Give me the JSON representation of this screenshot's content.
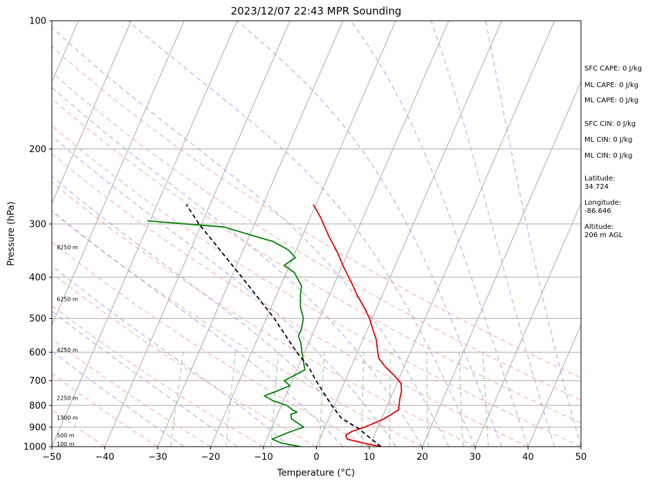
{
  "chart_data": {
    "type": "line",
    "subtype": "skew-t log-p sounding",
    "title": "2023/12/07 22:43 MPR Sounding",
    "xlabel": "Temperature (°C)",
    "ylabel": "Pressure (hPa)",
    "xlim": [
      -50,
      50
    ],
    "ylim": [
      1000,
      100
    ],
    "yscale": "log",
    "grid": true,
    "x_ticks": [
      -50,
      -40,
      -30,
      -20,
      -10,
      0,
      10,
      20,
      30,
      40,
      50
    ],
    "y_ticks": [
      1000,
      900,
      800,
      700,
      600,
      500,
      400,
      300,
      200,
      100
    ],
    "series": [
      {
        "color": "#e00000",
        "points": [
          [
            1000,
            12.2
          ],
          [
            980,
            8.5
          ],
          [
            960,
            5.2
          ],
          [
            940,
            4.6
          ],
          [
            920,
            5.5
          ],
          [
            900,
            7.5
          ],
          [
            880,
            9.0
          ],
          [
            860,
            10.5
          ],
          [
            840,
            11.5
          ],
          [
            820,
            12.5
          ],
          [
            800,
            12.2
          ],
          [
            770,
            11.8
          ],
          [
            740,
            11.5
          ],
          [
            710,
            10.8
          ],
          [
            680,
            8.8
          ],
          [
            650,
            6.5
          ],
          [
            620,
            4.5
          ],
          [
            590,
            3.5
          ],
          [
            560,
            2.5
          ],
          [
            530,
            1.0
          ],
          [
            500,
            -0.5
          ],
          [
            470,
            -2.5
          ],
          [
            440,
            -4.8
          ],
          [
            410,
            -7.0
          ],
          [
            380,
            -9.5
          ],
          [
            350,
            -12.0
          ],
          [
            320,
            -15.0
          ],
          [
            290,
            -18.0
          ],
          [
            270,
            -20.5
          ]
        ]
      },
      {
        "color": "#008000",
        "points": [
          [
            1000,
            -3.0
          ],
          [
            980,
            -7.0
          ],
          [
            960,
            -9.0
          ],
          [
            940,
            -7.5
          ],
          [
            920,
            -6.0
          ],
          [
            900,
            -4.0
          ],
          [
            880,
            -5.5
          ],
          [
            860,
            -7.0
          ],
          [
            840,
            -7.5
          ],
          [
            830,
            -6.5
          ],
          [
            820,
            -7.5
          ],
          [
            800,
            -9.0
          ],
          [
            780,
            -12.0
          ],
          [
            760,
            -14.0
          ],
          [
            740,
            -12.0
          ],
          [
            720,
            -10.0
          ],
          [
            700,
            -11.5
          ],
          [
            680,
            -10.0
          ],
          [
            660,
            -8.5
          ],
          [
            630,
            -9.5
          ],
          [
            600,
            -10.5
          ],
          [
            570,
            -11.5
          ],
          [
            550,
            -12.5
          ],
          [
            530,
            -12.5
          ],
          [
            500,
            -13.0
          ],
          [
            470,
            -14.5
          ],
          [
            440,
            -15.5
          ],
          [
            420,
            -16.0
          ],
          [
            390,
            -18.5
          ],
          [
            375,
            -21.0
          ],
          [
            360,
            -19.5
          ],
          [
            345,
            -21.5
          ],
          [
            330,
            -25.0
          ],
          [
            318,
            -30.0
          ],
          [
            305,
            -35.5
          ],
          [
            295,
            -50.5
          ]
        ]
      },
      {
        "color": "#000000",
        "dashed": true,
        "points": [
          [
            1000,
            12.2
          ],
          [
            900,
            6.0
          ],
          [
            860,
            2.5
          ],
          [
            800,
            -0.5
          ],
          [
            700,
            -5.5
          ],
          [
            650,
            -8.0
          ],
          [
            600,
            -11.5
          ],
          [
            500,
            -18.5
          ],
          [
            400,
            -28.0
          ],
          [
            300,
            -40.5
          ],
          [
            270,
            -44.5
          ]
        ]
      }
    ],
    "dry_adiabats_theta_c": [
      -40,
      -30,
      -20,
      -10,
      0,
      10,
      20,
      30,
      40,
      50,
      60,
      70,
      80
    ],
    "moist_adiabats_start_c": [
      -25,
      -15,
      -5,
      5,
      10,
      15,
      20,
      25,
      30,
      35,
      40,
      45,
      50
    ],
    "mixing_ratio_lines_gkg": [
      0.4,
      1,
      2,
      4,
      7,
      10,
      16,
      24,
      32
    ],
    "height_labels": [
      {
        "p": 1000,
        "label": "100 m"
      },
      {
        "p": 955,
        "label": "500 m"
      },
      {
        "p": 868,
        "label": "1300 m"
      },
      {
        "p": 780,
        "label": "2250 m"
      },
      {
        "p": 601,
        "label": "4250 m"
      },
      {
        "p": 457,
        "label": "6250 m"
      },
      {
        "p": 345,
        "label": "8250 m"
      }
    ],
    "side_text": [
      [
        "SFC CAPE: 0 J/kg"
      ],
      [
        "ML CAPE: 0 J/kg"
      ],
      [
        "ML CAPE: 0 J/kg"
      ],
      [
        "SFC CIN: 0 J/kg"
      ],
      [
        "ML CIN: 0 J/kg"
      ],
      [
        "ML CIN: 0 J/kg"
      ],
      [
        "Latitude:",
        "34.724"
      ],
      [
        "Longitude:",
        "-86.646"
      ],
      [
        "Altitude:",
        "206 m AGL"
      ]
    ]
  }
}
